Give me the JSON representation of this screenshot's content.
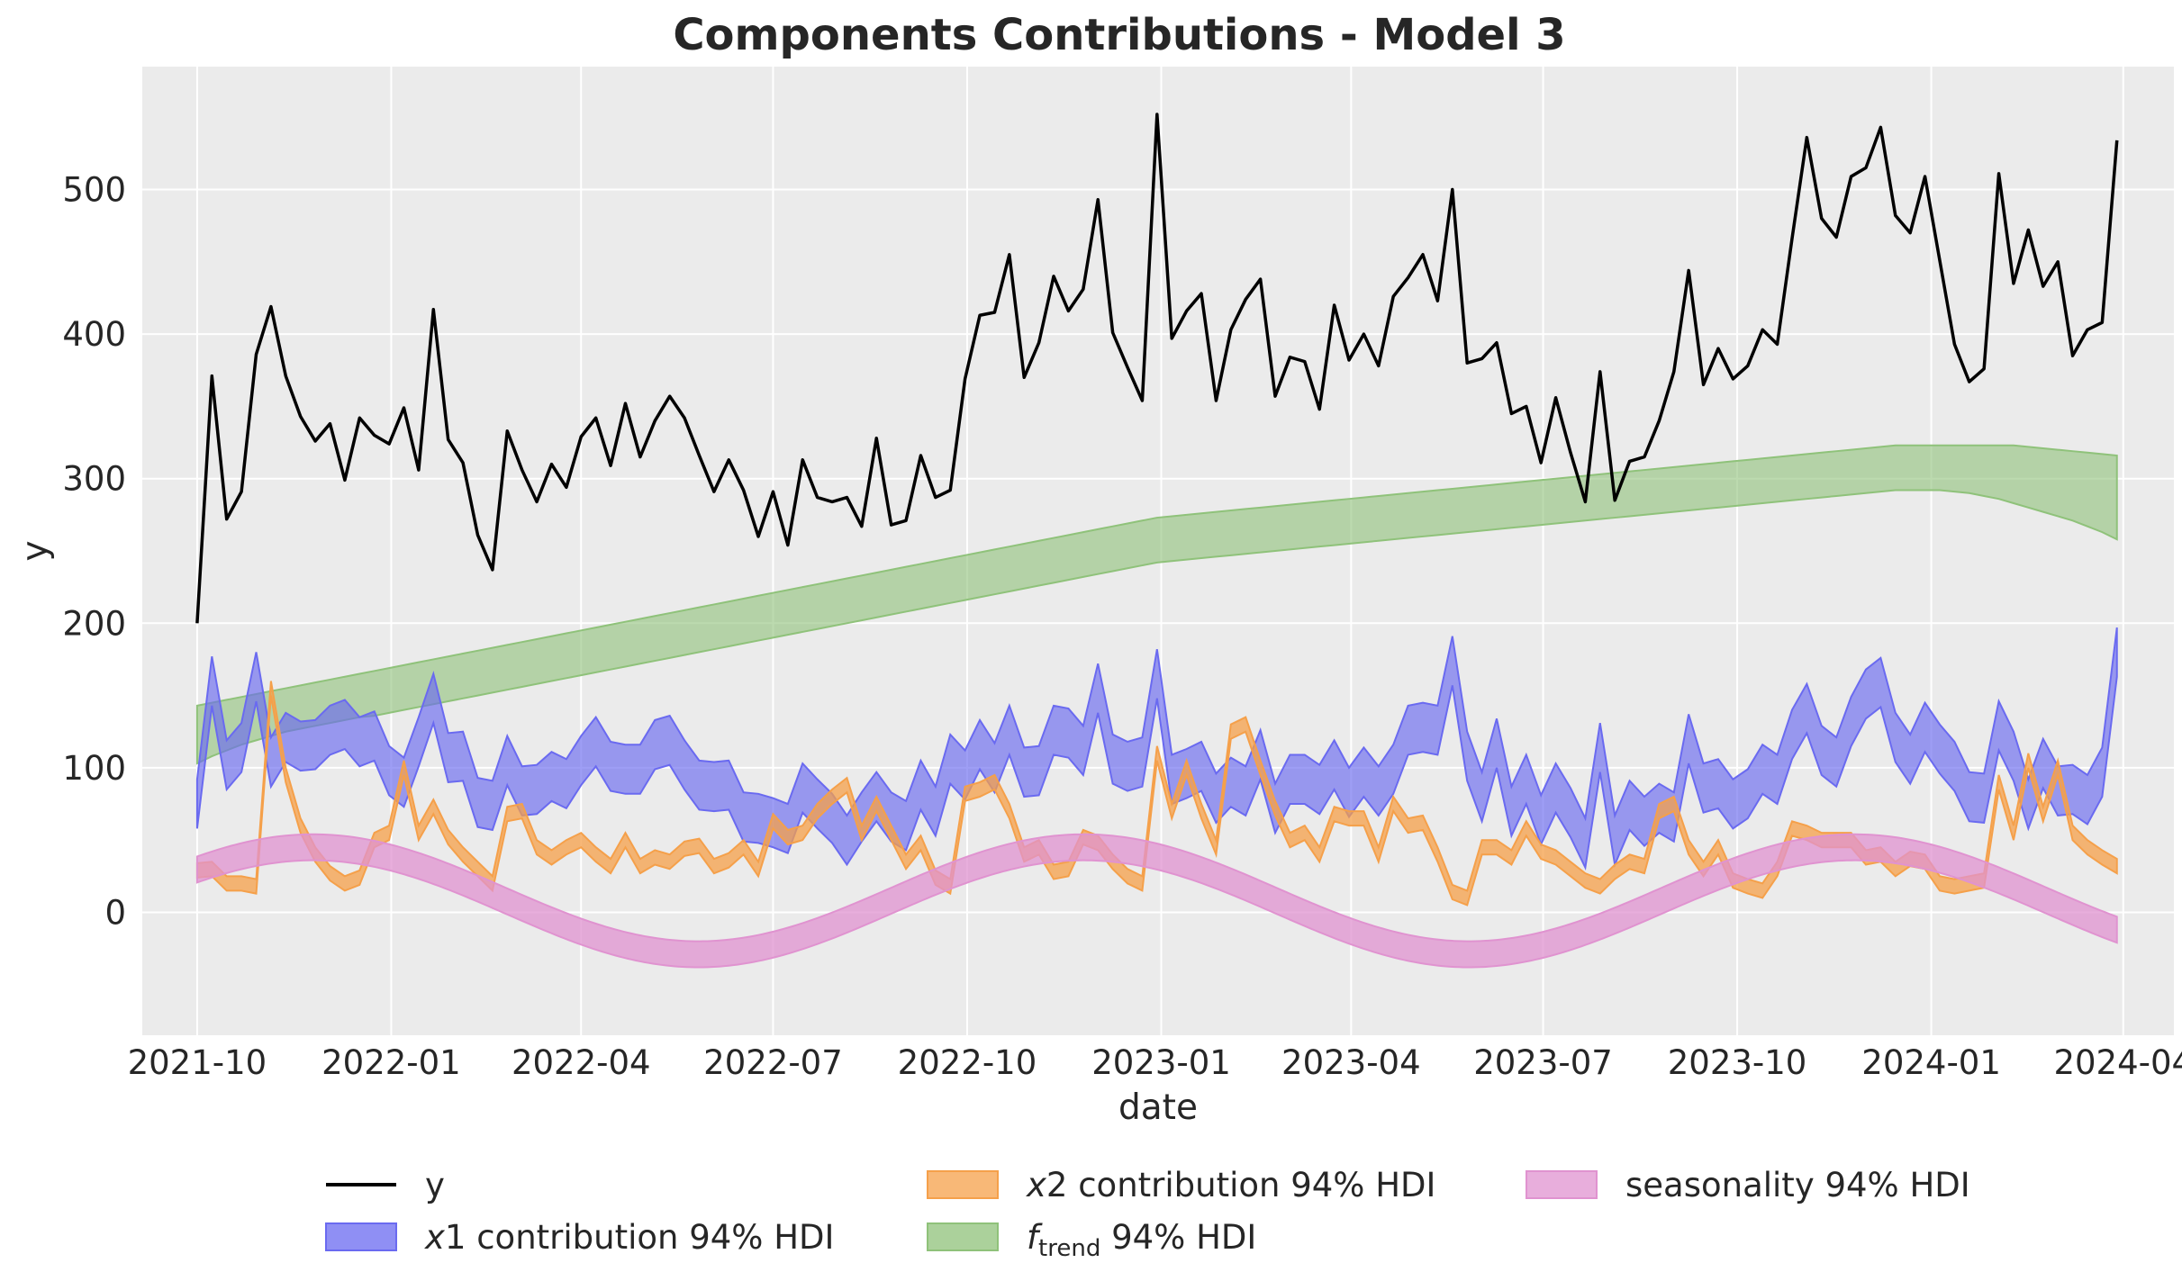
{
  "chart_data": {
    "type": "line",
    "title": "Components Contributions - Model 3",
    "xlabel": "date",
    "ylabel": "y",
    "x_ticks": [
      "2021-10",
      "2022-01",
      "2022-04",
      "2022-07",
      "2022-10",
      "2023-01",
      "2023-04",
      "2023-07",
      "2023-10",
      "2024-01",
      "2024-04"
    ],
    "y_ticks": [
      0,
      100,
      200,
      300,
      400,
      500
    ],
    "ylim": [
      -85,
      585
    ],
    "xlim": [
      "2021-09-05",
      "2024-04-25"
    ],
    "grid": true,
    "legend_placement": "bottom-center",
    "x_dates": [
      "2021-10-01",
      "2021-10-08",
      "2021-10-15",
      "2021-10-22",
      "2021-10-29",
      "2021-11-05",
      "2021-11-12",
      "2021-11-19",
      "2021-11-26",
      "2021-12-03",
      "2021-12-10",
      "2021-12-17",
      "2021-12-24",
      "2021-12-31",
      "2022-01-07",
      "2022-01-14",
      "2022-01-21",
      "2022-01-28",
      "2022-02-04",
      "2022-02-11",
      "2022-02-18",
      "2022-02-25",
      "2022-03-04",
      "2022-03-11",
      "2022-03-18",
      "2022-03-25",
      "2022-04-01",
      "2022-04-08",
      "2022-04-15",
      "2022-04-22",
      "2022-04-29",
      "2022-05-06",
      "2022-05-13",
      "2022-05-20",
      "2022-05-27",
      "2022-06-03",
      "2022-06-10",
      "2022-06-17",
      "2022-06-24",
      "2022-07-01",
      "2022-07-08",
      "2022-07-15",
      "2022-07-22",
      "2022-07-29",
      "2022-08-05",
      "2022-08-12",
      "2022-08-19",
      "2022-08-26",
      "2022-09-02",
      "2022-09-09",
      "2022-09-16",
      "2022-09-23",
      "2022-09-30",
      "2022-10-07",
      "2022-10-14",
      "2022-10-21",
      "2022-10-28",
      "2022-11-04",
      "2022-11-11",
      "2022-11-18",
      "2022-11-25",
      "2022-12-02",
      "2022-12-09",
      "2022-12-16",
      "2022-12-23",
      "2022-12-30",
      "2023-01-06",
      "2023-01-13",
      "2023-01-20",
      "2023-01-27",
      "2023-02-03",
      "2023-02-10",
      "2023-02-17",
      "2023-02-24",
      "2023-03-03",
      "2023-03-10",
      "2023-03-17",
      "2023-03-24",
      "2023-03-31",
      "2023-04-07",
      "2023-04-14",
      "2023-04-21",
      "2023-04-28",
      "2023-05-05",
      "2023-05-12",
      "2023-05-19",
      "2023-05-26",
      "2023-06-02",
      "2023-06-09",
      "2023-06-16",
      "2023-06-23",
      "2023-06-30",
      "2023-07-07",
      "2023-07-14",
      "2023-07-21",
      "2023-07-28",
      "2023-08-04",
      "2023-08-11",
      "2023-08-18",
      "2023-08-25",
      "2023-09-01",
      "2023-09-08",
      "2023-09-15",
      "2023-09-22",
      "2023-09-29",
      "2023-10-06",
      "2023-10-13",
      "2023-10-20",
      "2023-10-27",
      "2023-11-03",
      "2023-11-10",
      "2023-11-17",
      "2023-11-24",
      "2023-12-01",
      "2023-12-08",
      "2023-12-15",
      "2023-12-22",
      "2023-12-29",
      "2024-01-05",
      "2024-01-12",
      "2024-01-19",
      "2024-01-26",
      "2024-02-02",
      "2024-02-09",
      "2024-02-16",
      "2024-02-23",
      "2024-03-01",
      "2024-03-08",
      "2024-03-15",
      "2024-03-22",
      "2024-03-29"
    ],
    "series": [
      {
        "name": "y",
        "kind": "line",
        "color": "#000000",
        "values": [
          200,
          371,
          272,
          291,
          386,
          419,
          371,
          343,
          326,
          338,
          299,
          342,
          330,
          324,
          349,
          306,
          417,
          327,
          311,
          261,
          237,
          333,
          306,
          284,
          310,
          294,
          329,
          342,
          309,
          352,
          315,
          340,
          357,
          342,
          316,
          291,
          313,
          292,
          260,
          291,
          254,
          313,
          287,
          284,
          287,
          267,
          328,
          268,
          271,
          316,
          287,
          292,
          369,
          413,
          415,
          455,
          370,
          394,
          440,
          416,
          431,
          493,
          401,
          377,
          354,
          552,
          397,
          416,
          428,
          354,
          403,
          424,
          438,
          357,
          384,
          381,
          348,
          420,
          382,
          400,
          378,
          426,
          439,
          455,
          423,
          500,
          380,
          383,
          394,
          345,
          350,
          311,
          356,
          318,
          284,
          374,
          285,
          312,
          315,
          340,
          374,
          444,
          365,
          390,
          369,
          378,
          403,
          393,
          466,
          536,
          480,
          467,
          509,
          515,
          543,
          482,
          470,
          509,
          451,
          393,
          367,
          376,
          511,
          435,
          472,
          433,
          450,
          385,
          403,
          408,
          534
        ]
      },
      {
        "name": "x1 contribution 94% HDI",
        "kind": "band",
        "color": "#6a6af0",
        "center": [
          75,
          160,
          102,
          114,
          163,
          104,
          121,
          115,
          116,
          126,
          130,
          118,
          122,
          98,
          90,
          118,
          148,
          107,
          108,
          76,
          74,
          105,
          84,
          85,
          94,
          89,
          105,
          118,
          101,
          99,
          99,
          116,
          119,
          102,
          88,
          87,
          88,
          66,
          65,
          62,
          58,
          86,
          75,
          65,
          50,
          66,
          80,
          66,
          60,
          88,
          70,
          106,
          95,
          116,
          100,
          126,
          97,
          98,
          126,
          124,
          112,
          155,
          106,
          101,
          104,
          165,
          92,
          96,
          101,
          79,
          90,
          84,
          109,
          72,
          92,
          92,
          85,
          102,
          83,
          97,
          84,
          99,
          126,
          128,
          126,
          174,
          108,
          80,
          117,
          70,
          92,
          64,
          86,
          69,
          48,
          114,
          50,
          74,
          63,
          72,
          66,
          120,
          86,
          89,
          75,
          82,
          99,
          92,
          123,
          141,
          112,
          104,
          132,
          151,
          159,
          121,
          106,
          128,
          113,
          101,
          80,
          79,
          129,
          108,
          75,
          103,
          84,
          85,
          78,
          97,
          180
        ]
      },
      {
        "name": "x2 contribution 94% HDI",
        "kind": "band",
        "color": "#f5a04a",
        "center": [
          29,
          30,
          20,
          20,
          18,
          155,
          95,
          60,
          40,
          27,
          20,
          24,
          50,
          55,
          100,
          55,
          73,
          52,
          40,
          30,
          20,
          68,
          70,
          45,
          38,
          45,
          50,
          40,
          32,
          50,
          32,
          38,
          35,
          44,
          46,
          32,
          36,
          45,
          30,
          63,
          52,
          55,
          70,
          80,
          88,
          55,
          75,
          55,
          35,
          48,
          24,
          18,
          82,
          85,
          90,
          70,
          40,
          45,
          28,
          30,
          52,
          48,
          35,
          25,
          20,
          110,
          70,
          100,
          70,
          45,
          125,
          130,
          100,
          72,
          50,
          55,
          40,
          68,
          65,
          65,
          40,
          75,
          60,
          62,
          40,
          14,
          10,
          45,
          45,
          38,
          58,
          42,
          38,
          30,
          22,
          18,
          28,
          35,
          32,
          70,
          75,
          45,
          30,
          45,
          22,
          18,
          15,
          30,
          58,
          55,
          50,
          50,
          50,
          38,
          40,
          30,
          37,
          35,
          20,
          18,
          20,
          22,
          90,
          55,
          105,
          68,
          100,
          55,
          45,
          38,
          32
        ]
      },
      {
        "name": "f_trend 94% HDI",
        "kind": "band",
        "color": "#8fc27a",
        "lower": [
          103,
          108,
          112,
          116,
          119,
          122,
          125,
          127,
          129,
          131,
          133,
          135,
          136,
          138,
          140,
          142,
          144,
          146,
          148,
          150,
          152,
          154,
          156,
          158,
          160,
          162,
          164,
          166,
          168,
          170,
          172,
          174,
          176,
          178,
          180,
          182,
          184,
          186,
          188,
          190,
          192,
          194,
          196,
          198,
          200,
          202,
          204,
          206,
          208,
          210,
          212,
          214,
          216,
          218,
          220,
          222,
          224,
          226,
          228,
          230,
          232,
          234,
          236,
          238,
          240,
          242,
          243,
          244,
          245,
          246,
          247,
          248,
          249,
          250,
          251,
          252,
          253,
          254,
          255,
          256,
          257,
          258,
          259,
          260,
          261,
          262,
          263,
          264,
          265,
          266,
          267,
          268,
          269,
          270,
          271,
          272,
          273,
          274,
          275,
          276,
          277,
          278,
          279,
          280,
          281,
          282,
          283,
          284,
          285,
          286,
          287,
          288,
          289,
          290,
          291,
          292,
          292,
          292,
          292,
          291,
          290,
          288,
          286,
          283,
          280,
          277,
          274,
          271,
          267,
          263,
          258
        ],
        "upper": [
          143,
          145,
          147,
          149,
          151,
          153,
          155,
          157,
          159,
          161,
          163,
          165,
          167,
          169,
          171,
          173,
          175,
          177,
          179,
          181,
          183,
          185,
          187,
          189,
          191,
          193,
          195,
          197,
          199,
          201,
          203,
          205,
          207,
          209,
          211,
          213,
          215,
          217,
          219,
          221,
          223,
          225,
          227,
          229,
          231,
          233,
          235,
          237,
          239,
          241,
          243,
          245,
          247,
          249,
          251,
          253,
          255,
          257,
          259,
          261,
          263,
          265,
          267,
          269,
          271,
          273,
          274,
          275,
          276,
          277,
          278,
          279,
          280,
          281,
          282,
          283,
          284,
          285,
          286,
          287,
          288,
          289,
          290,
          291,
          292,
          293,
          294,
          295,
          296,
          297,
          298,
          299,
          300,
          301,
          302,
          303,
          304,
          305,
          306,
          307,
          308,
          309,
          310,
          311,
          312,
          313,
          314,
          315,
          316,
          317,
          318,
          319,
          320,
          321,
          322,
          323,
          323,
          323,
          323,
          323,
          323,
          323,
          323,
          323,
          322,
          321,
          320,
          319,
          318,
          317,
          316
        ]
      },
      {
        "name": "seasonality 94% HDI",
        "kind": "band",
        "color": "#e093d0",
        "amplitude": 37,
        "period_days": 365.25,
        "phase_ref_date": "2021-11-25",
        "offset": 8,
        "halfwidth": 9
      }
    ]
  },
  "legend": {
    "items": [
      {
        "id": "y",
        "label": "y",
        "style": "line",
        "color": "#000000"
      },
      {
        "id": "x2",
        "prefix": "x",
        "label": "2 contribution 94% HDI",
        "style": "patch",
        "color": "#f5a04a"
      },
      {
        "id": "season",
        "label": "seasonality 94% HDI",
        "style": "patch",
        "color": "#e093d0"
      },
      {
        "id": "x1",
        "prefix": "x",
        "label": "1 contribution 94% HDI",
        "style": "patch",
        "color": "#6a6af0"
      },
      {
        "id": "trend",
        "prefix": "f",
        "sub": "trend",
        "label": " 94% HDI",
        "style": "patch",
        "color": "#8fc27a"
      }
    ]
  },
  "colors": {
    "axes_background": "#ebebeb",
    "grid": "#ffffff"
  }
}
